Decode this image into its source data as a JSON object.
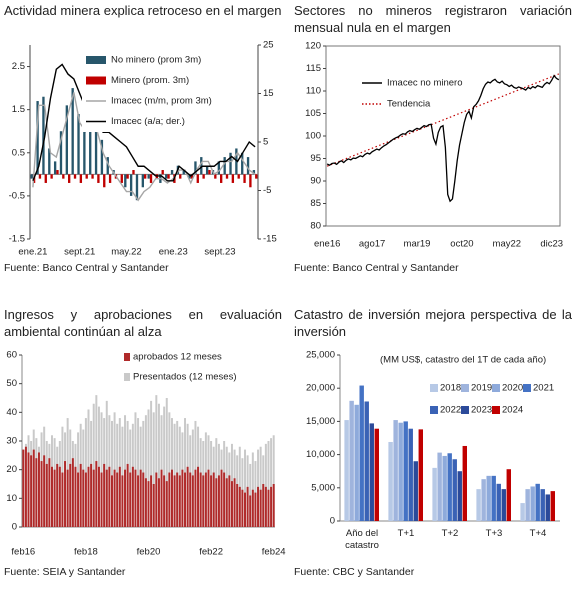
{
  "chart_data": [
    {
      "type": "combo",
      "title": "Actividad minera explica retroceso en el margen",
      "source": "Fuente: Banco Central y Santander",
      "categories": [
        "ene.21",
        null,
        null,
        null,
        null,
        null,
        null,
        null,
        "sept.21",
        null,
        null,
        null,
        null,
        null,
        null,
        null,
        "may.22",
        null,
        null,
        null,
        null,
        null,
        null,
        null,
        "ene.23",
        null,
        null,
        null,
        null,
        null,
        null,
        null,
        "sept.23",
        null,
        null,
        null,
        null,
        null,
        null
      ],
      "ylim": [
        -1.5,
        3
      ],
      "yticks": [
        -1.5,
        -0.5,
        0.5,
        1.5,
        2.5
      ],
      "y2lim": [
        -15,
        25
      ],
      "y2ticks": [
        -15,
        -5,
        5,
        15,
        25
      ],
      "series": [
        {
          "name": "No minero (prom 3m)",
          "kind": "bar",
          "color": "#27566b",
          "values": [
            -0.1,
            1.7,
            1.8,
            0.6,
            0.3,
            1.0,
            1.6,
            2.0,
            1.4,
            1.1,
            1.6,
            1.2,
            0.8,
            0.4,
            0.1,
            0.0,
            -0.3,
            -0.5,
            -0.6,
            -0.3,
            -0.1,
            0.0,
            -0.2,
            -0.1,
            0.1,
            0.2,
            0.1,
            -0.1,
            0.3,
            0.4,
            0.2,
            0.1,
            0.3,
            0.4,
            0.5,
            0.6,
            0.5,
            0.4,
            0.1
          ]
        },
        {
          "name": "Minero (prom. 3m)",
          "kind": "bar",
          "color": "#c00000",
          "values": [
            -0.2,
            -0.1,
            -0.2,
            -0.1,
            0.1,
            -0.1,
            -0.2,
            -0.1,
            -0.2,
            -0.1,
            -0.1,
            -0.2,
            -0.3,
            -0.2,
            -0.1,
            -0.2,
            -0.1,
            0.1,
            0.0,
            -0.1,
            -0.2,
            -0.1,
            0.1,
            -0.1,
            -0.2,
            -0.1,
            0.0,
            -0.1,
            -0.2,
            -0.1,
            0.1,
            -0.1,
            -0.2,
            -0.1,
            -0.2,
            -0.1,
            -0.2,
            -0.3,
            -0.1
          ]
        },
        {
          "name": "Imacec (m/m, prom 3m)",
          "kind": "line",
          "color": "#a6a6a6",
          "values": [
            -0.3,
            1.6,
            1.6,
            0.5,
            0.4,
            0.9,
            1.4,
            1.9,
            1.2,
            1.0,
            1.5,
            1.0,
            0.5,
            0.2,
            0.0,
            -0.2,
            -0.4,
            -0.4,
            -0.6,
            -0.4,
            -0.3,
            -0.1,
            -0.1,
            -0.2,
            -0.1,
            0.1,
            0.1,
            -0.2,
            0.1,
            0.3,
            0.3,
            0.0,
            0.1,
            0.3,
            0.3,
            0.5,
            0.3,
            0.1,
            0.0
          ]
        },
        {
          "name": "Imacec (a/a; der.)",
          "kind": "line",
          "axis": "y2",
          "color": "#000000",
          "values": [
            -3,
            0,
            6,
            14,
            20,
            21,
            19,
            18,
            15,
            12,
            12,
            10,
            7,
            7,
            6,
            5,
            4,
            2,
            0,
            0,
            -1,
            -2,
            -2,
            -3,
            -3,
            0,
            -1,
            -2,
            -1,
            0,
            0,
            0,
            1,
            1,
            2,
            1,
            3,
            5,
            4
          ]
        }
      ]
    },
    {
      "type": "line",
      "title": "Sectores no mineros registraron variación mensual nula en el margen",
      "source": "Fuente: Banco Central y Santander",
      "categories": [
        "ene16",
        null,
        null,
        null,
        null,
        null,
        null,
        null,
        null,
        null,
        null,
        null,
        null,
        null,
        null,
        null,
        null,
        null,
        null,
        "ago17",
        null,
        null,
        null,
        null,
        null,
        null,
        null,
        null,
        null,
        null,
        null,
        null,
        null,
        null,
        null,
        null,
        null,
        null,
        "mar19",
        null,
        null,
        null,
        null,
        null,
        null,
        null,
        null,
        null,
        null,
        null,
        null,
        null,
        null,
        null,
        null,
        null,
        null,
        "oct20",
        null,
        null,
        null,
        null,
        null,
        null,
        null,
        null,
        null,
        null,
        null,
        null,
        null,
        null,
        null,
        null,
        null,
        null,
        "may22",
        null,
        null,
        null,
        null,
        null,
        null,
        null,
        null,
        null,
        null,
        null,
        null,
        null,
        null,
        null,
        null,
        null,
        null,
        "dic23",
        null,
        null,
        null
      ],
      "ylim": [
        80,
        120
      ],
      "yticks": [
        80,
        85,
        90,
        95,
        100,
        105,
        110,
        115,
        120
      ],
      "series": [
        {
          "name": "Imacec no minero",
          "color": "#000000",
          "values": [
            93.8,
            93.5,
            93.9,
            94.0,
            93.7,
            94.2,
            94.5,
            94.1,
            94.6,
            94.9,
            94.7,
            95.1,
            95.0,
            95.3,
            95.6,
            95.4,
            95.9,
            96.2,
            96.0,
            96.5,
            96.8,
            97.1,
            96.9,
            97.4,
            97.8,
            98.1,
            98.5,
            98.9,
            99.3,
            99.6,
            99.8,
            100.2,
            100.5,
            100.4,
            100.9,
            101.2,
            101.0,
            101.4,
            101.7,
            101.5,
            101.9,
            102.3,
            102.1,
            102.5,
            102.6,
            99.5,
            98.2,
            100.8,
            102.0,
            102.3,
            97.5,
            87.0,
            85.5,
            86.0,
            90.0,
            94.5,
            98.0,
            100.5,
            103.0,
            104.8,
            105.5,
            104.0,
            106.5,
            107.0,
            107.8,
            109.0,
            110.5,
            111.5,
            112.0,
            111.8,
            112.3,
            112.6,
            112.0,
            111.8,
            112.2,
            111.6,
            111.4,
            111.0,
            111.3,
            110.8,
            110.6,
            110.9,
            110.7,
            110.5,
            110.2,
            110.8,
            110.5,
            111.0,
            110.7,
            111.2,
            111.0,
            110.8,
            111.5,
            111.9,
            111.6,
            112.4,
            113.4,
            112.8,
            112.5
          ]
        }
      ],
      "trend": {
        "name": "Tendencia",
        "color": "#c00000",
        "values": [
          93.3,
          113.8
        ]
      }
    },
    {
      "type": "bar",
      "barmode": "overlay",
      "title": "Ingresos y aprobaciones en evaluación ambiental continúan al alza",
      "source": "Fuente: SEIA y Santander",
      "categories": [
        "feb16",
        null,
        null,
        null,
        null,
        null,
        null,
        null,
        null,
        null,
        null,
        null,
        null,
        null,
        null,
        null,
        null,
        null,
        null,
        null,
        null,
        null,
        null,
        null,
        "feb18",
        null,
        null,
        null,
        null,
        null,
        null,
        null,
        null,
        null,
        null,
        null,
        null,
        null,
        null,
        null,
        null,
        null,
        null,
        null,
        null,
        null,
        null,
        null,
        "feb20",
        null,
        null,
        null,
        null,
        null,
        null,
        null,
        null,
        null,
        null,
        null,
        null,
        null,
        null,
        null,
        null,
        null,
        null,
        null,
        null,
        null,
        null,
        null,
        "feb22",
        null,
        null,
        null,
        null,
        null,
        null,
        null,
        null,
        null,
        null,
        null,
        null,
        null,
        null,
        null,
        null,
        null,
        null,
        null,
        null,
        null,
        null,
        null,
        "feb24"
      ],
      "ylim": [
        0,
        60
      ],
      "yticks": [
        0,
        10,
        20,
        30,
        40,
        50,
        60
      ],
      "series": [
        {
          "name": "aprobados 12 meses",
          "color": "#b02a2a",
          "values": [
            27,
            28,
            26,
            25,
            27,
            24,
            26,
            23,
            25,
            22,
            24,
            21,
            20,
            22,
            21,
            19,
            23,
            20,
            22,
            24,
            21,
            19,
            22,
            20,
            19,
            21,
            22,
            20,
            23,
            21,
            19,
            22,
            20,
            21,
            18,
            20,
            19,
            21,
            18,
            20,
            22,
            19,
            21,
            20,
            18,
            20,
            19,
            17,
            16,
            18,
            15,
            19,
            17,
            20,
            18,
            16,
            19,
            20,
            18,
            19,
            18,
            20,
            19,
            21,
            19,
            18,
            20,
            21,
            19,
            18,
            19,
            20,
            18,
            19,
            17,
            18,
            20,
            19,
            17,
            18,
            16,
            17,
            15,
            14,
            13,
            12,
            14,
            11,
            13,
            12,
            14,
            13,
            15,
            14,
            13,
            14,
            15
          ]
        },
        {
          "name": "Presentados (12 meses)",
          "color": "#c9c9c9",
          "values": [
            27,
            29,
            32,
            30,
            34,
            31,
            28,
            33,
            35,
            30,
            29,
            32,
            31,
            28,
            30,
            35,
            33,
            38,
            34,
            30,
            29,
            33,
            36,
            34,
            38,
            41,
            37,
            43,
            46,
            42,
            40,
            38,
            44,
            39,
            37,
            40,
            36,
            38,
            35,
            39,
            37,
            34,
            36,
            40,
            38,
            35,
            37,
            39,
            41,
            44,
            40,
            46,
            43,
            39,
            42,
            45,
            40,
            38,
            36,
            37,
            35,
            33,
            38,
            36,
            32,
            34,
            37,
            35,
            31,
            30,
            33,
            32,
            30,
            28,
            31,
            29,
            27,
            30,
            28,
            26,
            29,
            27,
            25,
            28,
            24,
            27,
            25,
            22,
            26,
            23,
            27,
            28,
            25,
            29,
            30,
            31,
            32
          ]
        }
      ]
    },
    {
      "type": "bar",
      "barmode": "group",
      "title": "Catastro de inversión mejora perspectiva de la inversión",
      "subtitle": "(MM US$, catastro del 1T de cada año)",
      "source": "Fuente: CBC y Santander",
      "categories": [
        "Año del catastro",
        "T+1",
        "T+2",
        "T+3",
        "T+4"
      ],
      "ylim": [
        0,
        25000
      ],
      "yticks": [
        0,
        {
          "value": 5000,
          "label": "5,000"
        },
        {
          "value": 10000,
          "label": "10,000"
        },
        {
          "value": 15000,
          "label": "15,000"
        },
        {
          "value": 20000,
          "label": "20,000"
        },
        {
          "value": 25000,
          "label": "25,000"
        }
      ],
      "series": [
        {
          "name": "2018",
          "color": "#b7c9e6",
          "values": [
            15200,
            11900,
            8000,
            4800,
            2700
          ]
        },
        {
          "name": "2019",
          "color": "#9fb4dd",
          "values": [
            18100,
            15200,
            10300,
            6300,
            4800
          ]
        },
        {
          "name": "2020",
          "color": "#8eaadb",
          "values": [
            17500,
            14800,
            9800,
            6800,
            5200
          ]
        },
        {
          "name": "2021",
          "color": "#4472c4",
          "values": [
            20400,
            15000,
            10200,
            6800,
            5600
          ]
        },
        {
          "name": "2022",
          "color": "#3a62b5",
          "values": [
            18000,
            13900,
            9300,
            5600,
            4800
          ]
        },
        {
          "name": "2023",
          "color": "#2b4a9a",
          "values": [
            14700,
            9000,
            7500,
            4800,
            4000
          ]
        },
        {
          "name": "2024",
          "color": "#c00000",
          "values": [
            13900,
            13800,
            11300,
            7800,
            4500
          ]
        }
      ]
    }
  ]
}
